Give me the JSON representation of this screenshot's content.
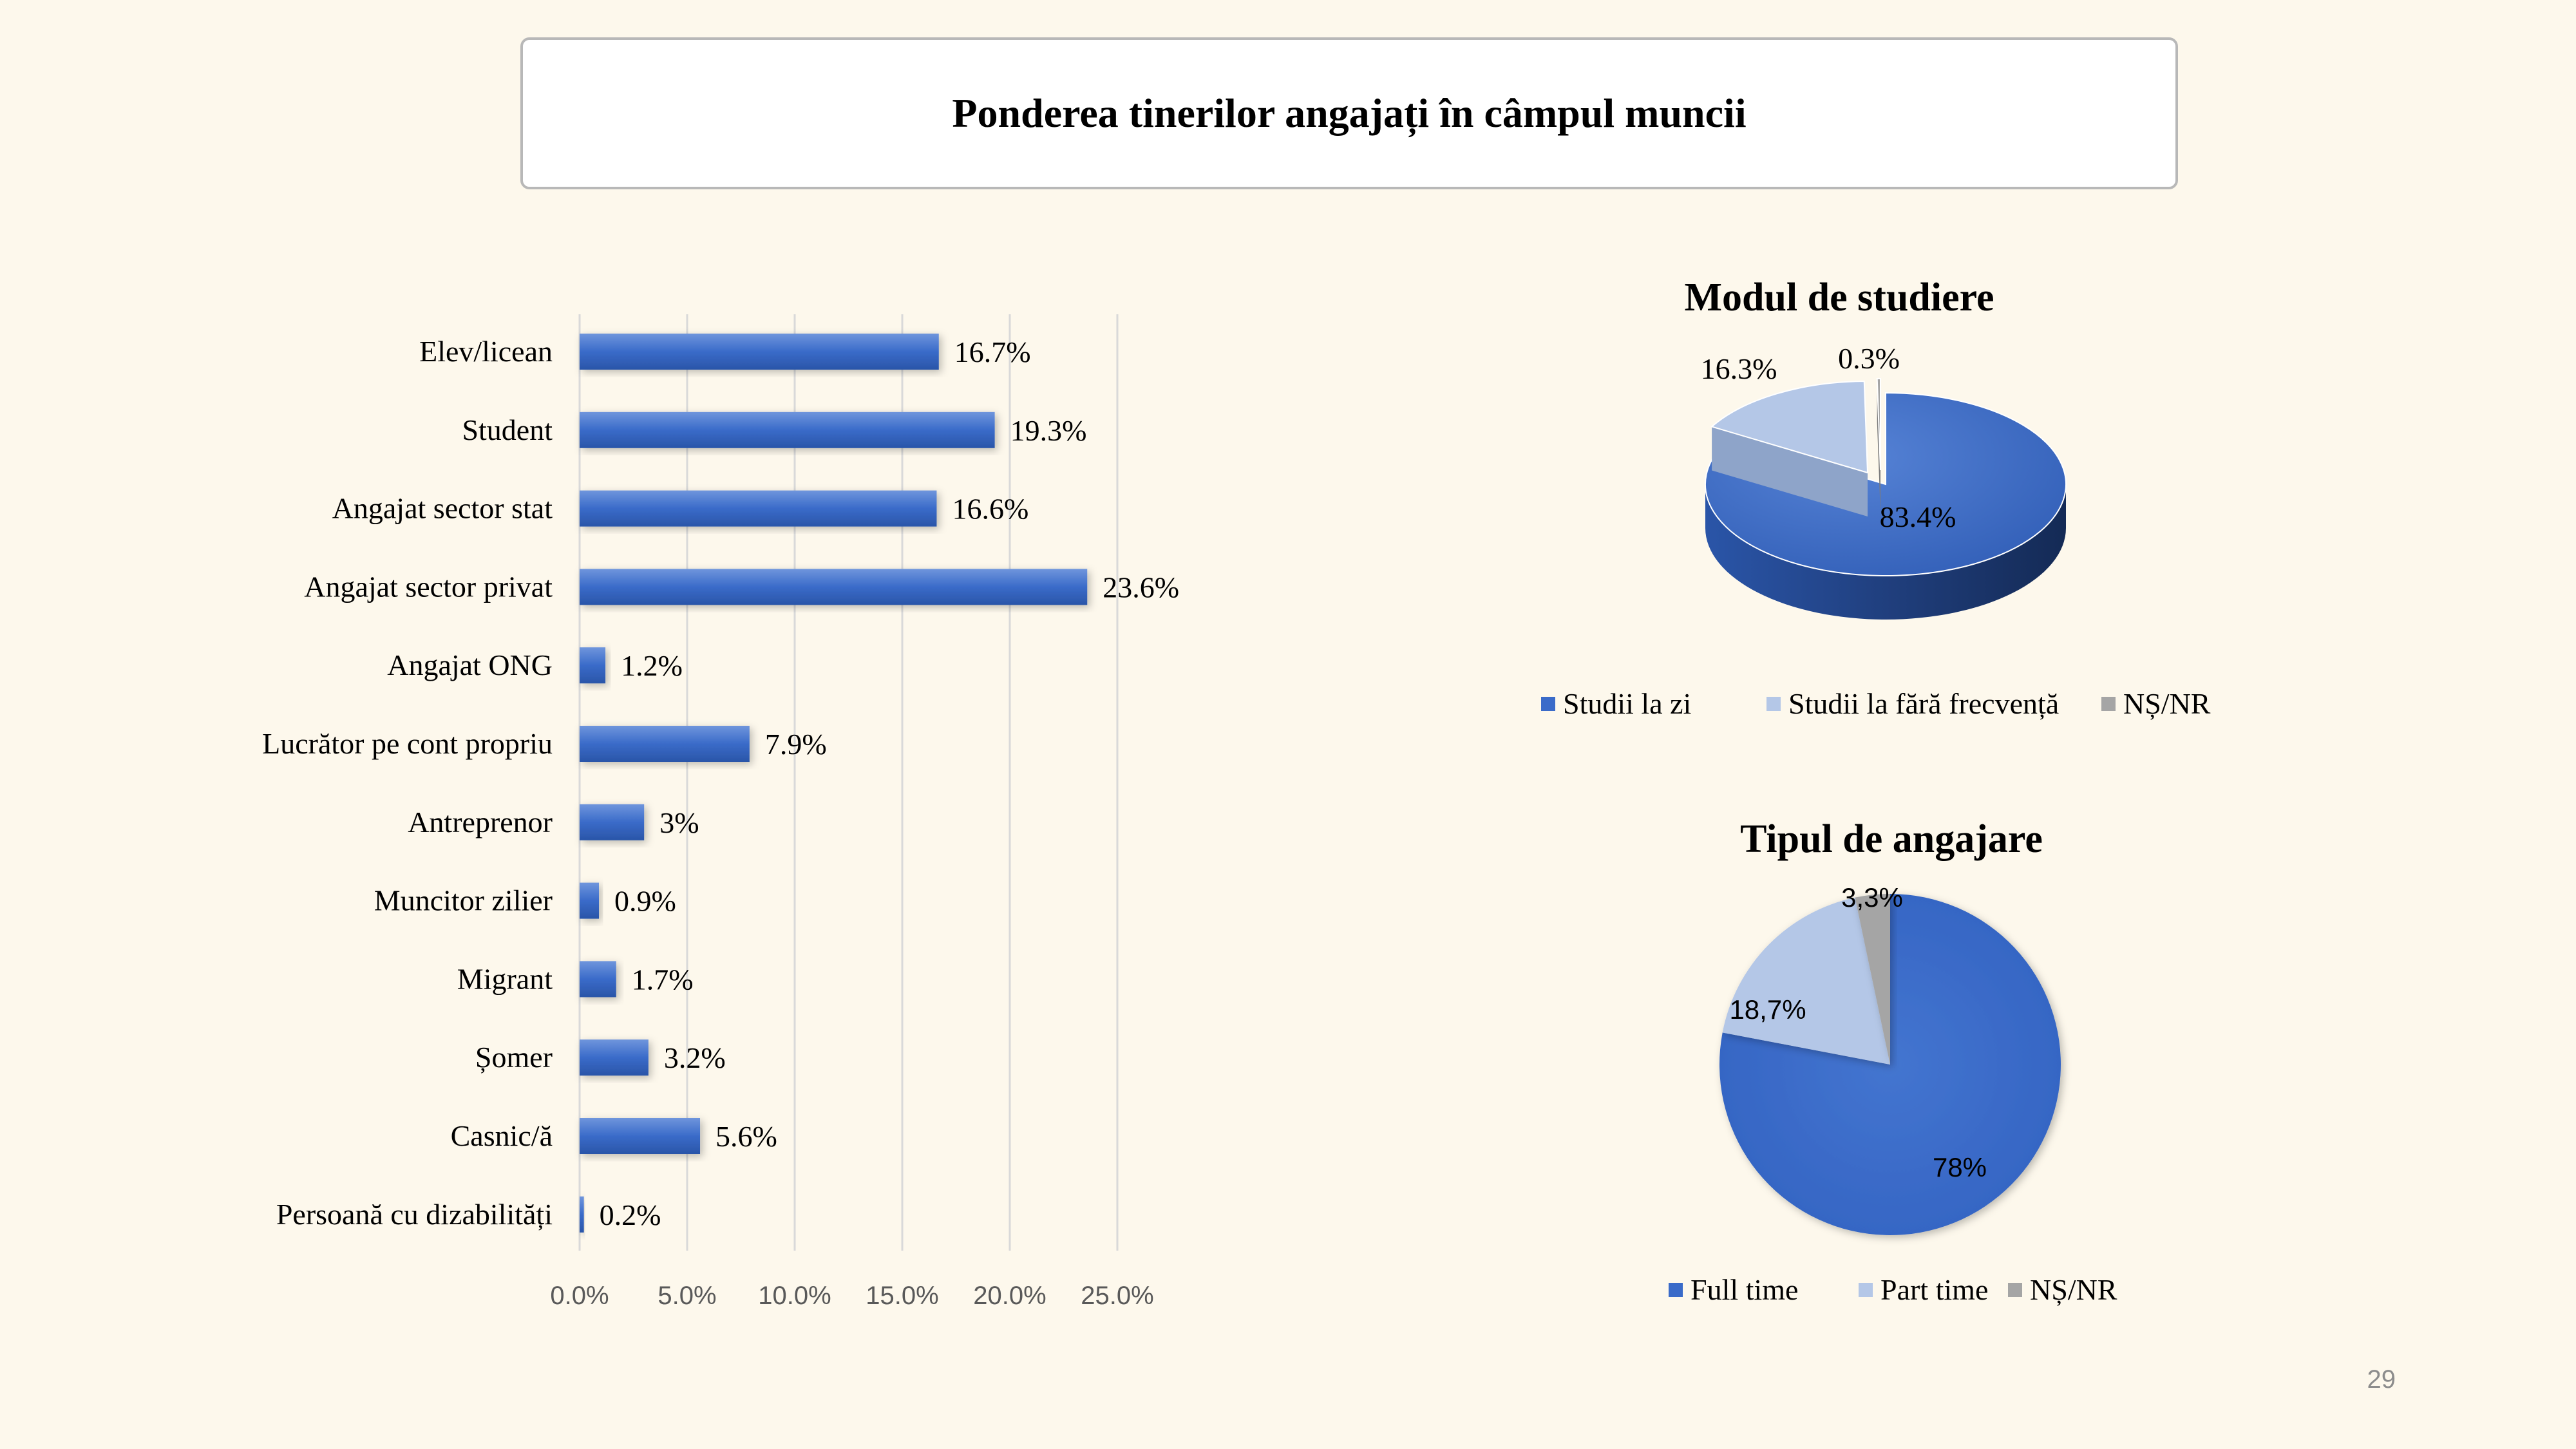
{
  "slide": {
    "title": "Ponderea tinerilor angajați în câmpul muncii",
    "page_number": "29"
  },
  "chart_data": [
    {
      "type": "bar",
      "orientation": "horizontal",
      "categories": [
        "Elev/licean",
        "Student",
        "Angajat sector stat",
        "Angajat sector privat",
        "Angajat ONG",
        "Lucrător pe cont propriu",
        "Antreprenor",
        "Muncitor zilier",
        "Migrant",
        "Șomer",
        "Casnic/ă",
        "Persoană cu dizabilități"
      ],
      "values": [
        16.7,
        19.3,
        16.6,
        23.6,
        1.2,
        7.9,
        3,
        0.9,
        1.7,
        3.2,
        5.6,
        0.2
      ],
      "data_labels": [
        "16.7%",
        "19.3%",
        "16.6%",
        "23.6%",
        "1.2%",
        "7.9%",
        "3%",
        "0.9%",
        "1.7%",
        "3.2%",
        "5.6%",
        "0.2%"
      ],
      "x_ticks": [
        "0.0%",
        "5.0%",
        "10.0%",
        "15.0%",
        "20.0%",
        "25.0%"
      ],
      "xlim": [
        0,
        25
      ],
      "grid": "vertical",
      "color": "#3a6bc9"
    },
    {
      "type": "pie",
      "style": "3d",
      "title": "Modul de studiere",
      "labels": [
        "Studii la zi",
        "Studii la fără frecvență",
        "NȘ/NR"
      ],
      "values": [
        83.4,
        16.3,
        0.3
      ],
      "data_labels": [
        "83.4%",
        "16.3%",
        "0.3%"
      ],
      "colors": [
        "#3a6bc9",
        "#b4c7e7",
        "#a5a5a5"
      ],
      "legend": "bottom"
    },
    {
      "type": "pie",
      "title": "Tipul de angajare",
      "labels": [
        "Full time",
        "Part time",
        "NȘ/NR"
      ],
      "values": [
        78,
        18.7,
        3.3
      ],
      "data_labels": [
        "78%",
        "18,7%",
        "3,3%"
      ],
      "colors": [
        "#3a6bc9",
        "#b4c7e7",
        "#a5a5a5"
      ],
      "legend": "bottom"
    }
  ]
}
